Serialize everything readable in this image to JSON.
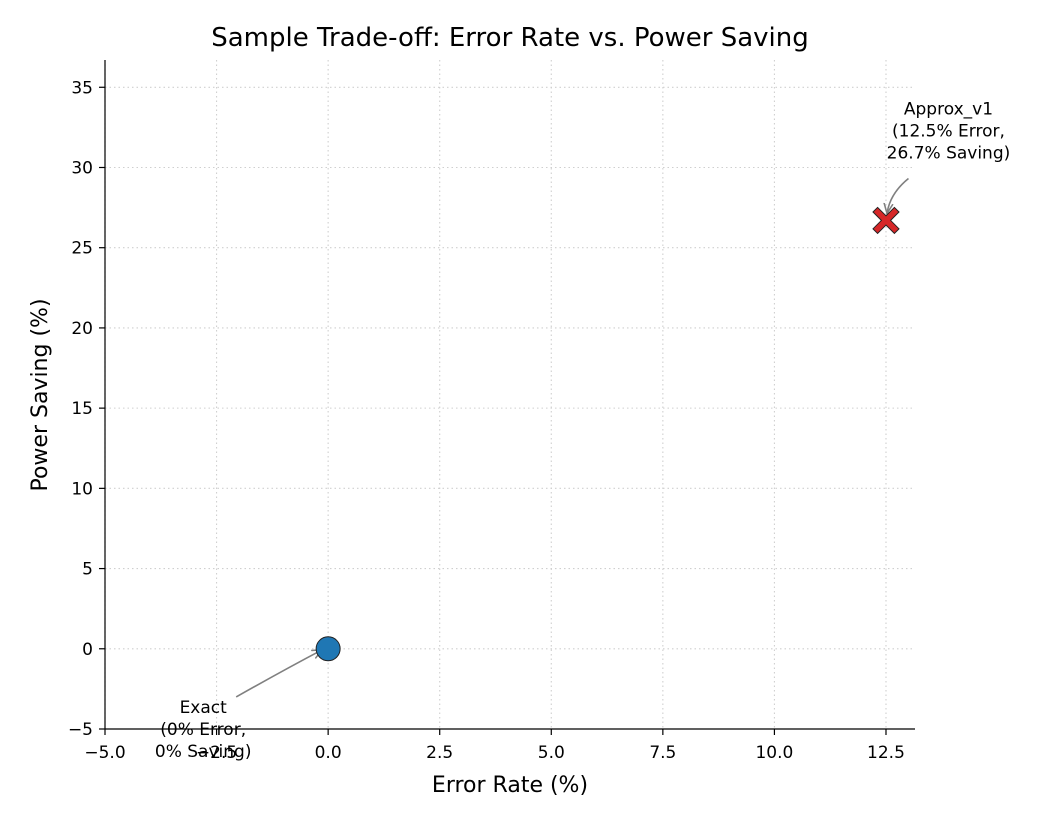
{
  "chart_data": {
    "type": "scatter",
    "title": "Sample Trade-off: Error Rate vs. Power Saving",
    "xlabel": "Error Rate (%)",
    "ylabel": "Power Saving (%)",
    "xlim": [
      -5.0,
      13.15
    ],
    "ylim": [
      -5.0,
      36.7
    ],
    "x_ticks": [
      -5.0,
      -2.5,
      0.0,
      2.5,
      5.0,
      7.5,
      10.0,
      12.5
    ],
    "x_tick_labels": [
      "−5.0",
      "−2.5",
      "0.0",
      "2.5",
      "5.0",
      "7.5",
      "10.0",
      "12.5"
    ],
    "y_ticks": [
      -5,
      0,
      5,
      10,
      15,
      20,
      25,
      30,
      35
    ],
    "y_tick_labels": [
      "−5",
      "0",
      "5",
      "10",
      "15",
      "20",
      "25",
      "30",
      "35"
    ],
    "grid": true,
    "grid_style": "dotted",
    "points": [
      {
        "x": 0.0,
        "y": 0.0,
        "marker": "circle",
        "color": "#1f77b4",
        "annotation": [
          "Exact",
          "(0% Error,",
          "0% Saving)"
        ],
        "annotation_offset": [
          -2.8,
          -4.0
        ]
      },
      {
        "x": 12.5,
        "y": 26.7,
        "marker": "x",
        "color": "#d62728",
        "annotation": [
          "Approx_v1",
          "(12.5% Error,",
          "26.7% Saving)"
        ],
        "annotation_offset": [
          1.4,
          6.6
        ]
      }
    ]
  }
}
